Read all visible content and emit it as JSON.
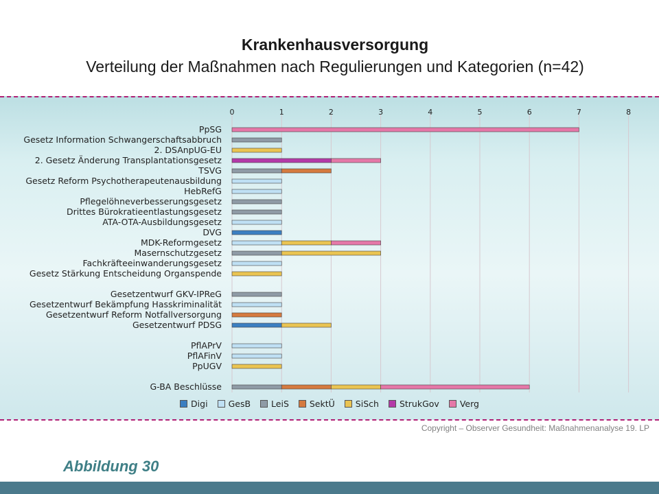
{
  "title": "Krankenhausversorgung",
  "subtitle": "Verteilung der Maßnahmen nach Regulierungen und Kategorien (n=42)",
  "copyright": "Copyright – Observer Gesundheit: Maßnahmenanalyse 19. LP",
  "figure_label": "Abbildung 30",
  "colors": {
    "Digi": "#3c7fc1",
    "GesB": "#bfe0f4",
    "LeiS": "#8f9ba6",
    "SektÜ": "#d57a3f",
    "SiSch": "#eac452",
    "StrukGov": "#b43aa8",
    "Verg": "#e578a8",
    "band": "#d9eff1",
    "dash": "#b01f74"
  },
  "chart_data": {
    "type": "bar",
    "orientation": "horizontal",
    "stacked": true,
    "xlim": [
      0,
      8
    ],
    "xticks": [
      "0",
      "1",
      "2",
      "3",
      "4",
      "5",
      "6",
      "7",
      "8"
    ],
    "grid": true,
    "legend_position": "bottom",
    "legend": [
      "Digi",
      "GesB",
      "LeiS",
      "SektÜ",
      "SiSch",
      "StrukGov",
      "Verg"
    ],
    "categories": [
      "PpSG",
      "Gesetz Information Schwangerschaftsabbruch",
      "2. DSAnpUG-EU",
      "2. Gesetz Änderung Transplantationsgesetz",
      "TSVG",
      "Gesetz Reform Psychotherapeutenausbildung",
      "HebRefG",
      "Pflegelöhneverbesserungsgesetz",
      "Drittes Bürokratieentlastungsgesetz",
      "ATA-OTA-Ausbildungsgesetz",
      "DVG",
      "MDK-Reformgesetz",
      "Masernschutzgesetz",
      "Fachkräfteeinwanderungsgesetz",
      "Gesetz Stärkung Entscheidung Organspende",
      "",
      "Gesetzentwurf GKV-IPReG",
      "Gesetzentwurf Bekämpfung Hasskriminalität",
      "Gesetzentwurf Reform Notfallversorgung",
      "Gesetzentwurf PDSG",
      "",
      "PflAPrV",
      "PflAFinV",
      "PpUGV",
      "",
      "G-BA Beschlüsse"
    ],
    "series": [
      {
        "name": "Digi",
        "values": [
          0,
          0,
          0,
          0,
          0,
          0,
          0,
          0,
          0,
          0,
          1,
          0,
          0,
          0,
          0,
          0,
          0,
          0,
          0,
          1,
          0,
          0,
          0,
          0,
          0,
          0
        ]
      },
      {
        "name": "GesB",
        "values": [
          0,
          0,
          0,
          0,
          0,
          1,
          1,
          0,
          0,
          1,
          0,
          1,
          0,
          1,
          0,
          0,
          0,
          1,
          0,
          0,
          0,
          1,
          1,
          0,
          0,
          0
        ]
      },
      {
        "name": "LeiS",
        "values": [
          0,
          1,
          0,
          0,
          1,
          0,
          0,
          1,
          1,
          0,
          0,
          0,
          1,
          0,
          0,
          0,
          1,
          0,
          0,
          0,
          0,
          0,
          0,
          0,
          0,
          1
        ]
      },
      {
        "name": "SektÜ",
        "values": [
          0,
          0,
          0,
          0,
          1,
          0,
          0,
          0,
          0,
          0,
          0,
          0,
          0,
          0,
          0,
          0,
          0,
          0,
          1,
          0,
          0,
          0,
          0,
          0,
          0,
          1
        ]
      },
      {
        "name": "SiSch",
        "values": [
          0,
          0,
          1,
          0,
          0,
          0,
          0,
          0,
          0,
          0,
          0,
          1,
          2,
          0,
          1,
          0,
          0,
          0,
          0,
          1,
          0,
          0,
          0,
          1,
          0,
          1
        ]
      },
      {
        "name": "StrukGov",
        "values": [
          0,
          0,
          0,
          2,
          0,
          0,
          0,
          0,
          0,
          0,
          0,
          0,
          0,
          0,
          0,
          0,
          0,
          0,
          0,
          0,
          0,
          0,
          0,
          0,
          0,
          0
        ]
      },
      {
        "name": "Verg",
        "values": [
          7,
          0,
          0,
          1,
          0,
          0,
          0,
          0,
          0,
          0,
          0,
          1,
          0,
          0,
          0,
          0,
          0,
          0,
          0,
          0,
          0,
          0,
          0,
          0,
          0,
          3
        ]
      }
    ]
  }
}
